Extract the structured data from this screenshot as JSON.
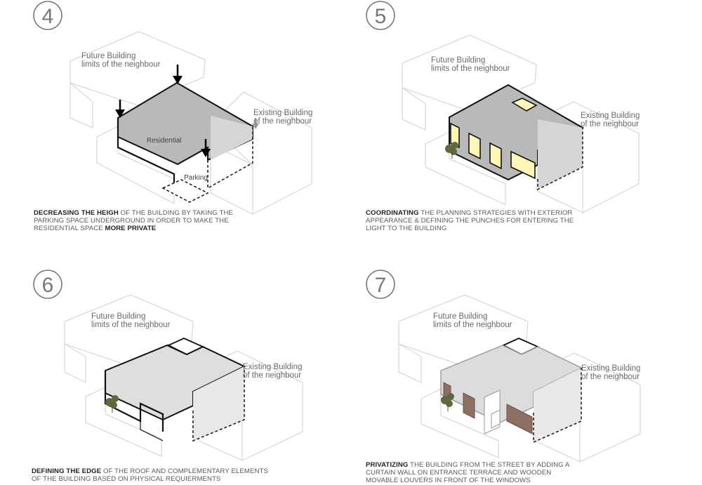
{
  "panels": [
    {
      "number": "4",
      "labels": {
        "future": [
          "Future Building",
          "limits of the neighbour"
        ],
        "existing": [
          "Existing Building",
          "of the neighbour"
        ],
        "residential": "Residential",
        "parking": "Parking"
      },
      "caption": {
        "bold1": "DECREASING THE HEIGH",
        "text1": " OF THE BUILDING BY TAKING THE PARKING SPACE UNDERGROUND IN ORDER TO MAKE THE RESIDENTIAL SPACE ",
        "bold2": "MORE PRIVATE"
      }
    },
    {
      "number": "5",
      "labels": {
        "future": [
          "Future Building",
          "limits of the neighbour"
        ],
        "existing": [
          "Existing Building",
          "of the neighbour"
        ]
      },
      "caption": {
        "bold1": "COORDINATING",
        "text1": " THE PLANNING STRATEGIES WITH EXTERIOR APPEARANCE  & DEFINING THE PUNCHES FOR ENTERING THE LIGHT TO THE BUILDING"
      }
    },
    {
      "number": "6",
      "labels": {
        "future": [
          "Future Building",
          "limits of the neighbour"
        ],
        "existing": [
          "Existing Building",
          "of the neighbour"
        ]
      },
      "caption": {
        "bold1": "DEFINING THE EDGE",
        "text1": " OF THE ROOF AND COMPLEMENTARY ELEMENTS OF THE BUILDING BASED ON PHYSICAL REQUIERMENTS"
      }
    },
    {
      "number": "7",
      "labels": {
        "future": [
          "Future Building",
          "limits of the neighbour"
        ],
        "existing": [
          "Existing Building",
          "of the neighbour"
        ]
      },
      "caption": {
        "bold1": "PRIVATIZING",
        "text1": " THE BUILDING FROM THE STREET BY ADDING A CURTAIN WALL ON ENTRANCE TERRACE AND WOODEN MOVABLE LOUVERS IN FRONT OF THE WINDOWS"
      }
    }
  ]
}
